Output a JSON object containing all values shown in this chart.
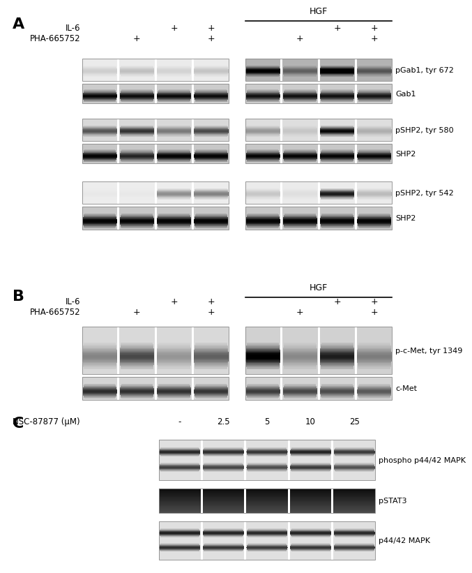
{
  "fig_width": 6.5,
  "fig_height": 7.99,
  "bg_color": "#ffffff",
  "panel_A": {
    "label": "A",
    "hgf_label": "HGF",
    "blot_labels": [
      "pGab1, tyr 672",
      "Gab1",
      "pSHP2, tyr 580",
      "SHP2",
      "pSHP2, tyr 542",
      "SHP2"
    ]
  },
  "panel_B": {
    "label": "B",
    "hgf_label": "HGF",
    "blot_labels": [
      "p-c-Met, tyr 1349",
      "c-Met"
    ]
  },
  "panel_C": {
    "label": "C",
    "nsc_label": "NSC-87877 (μM)",
    "nsc_values": [
      "-",
      "2.5",
      "5",
      "10",
      "25"
    ],
    "blot_labels": [
      "phospho p44/42 MAPK",
      "pSTAT3",
      "p44/42 MAPK"
    ]
  }
}
